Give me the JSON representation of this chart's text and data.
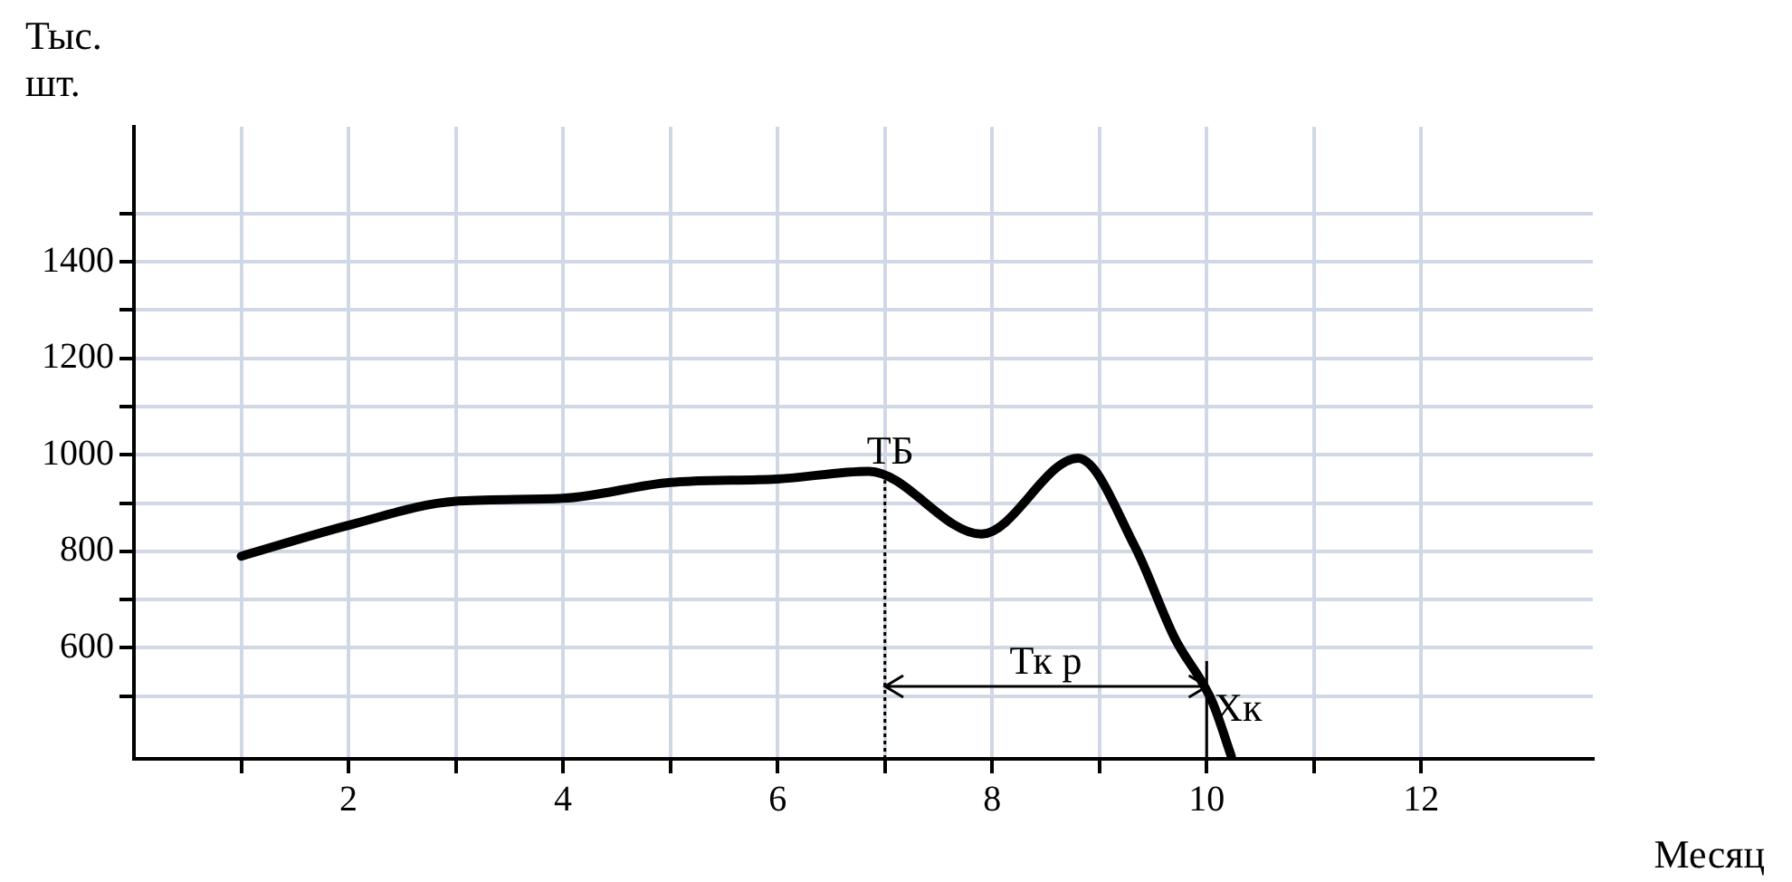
{
  "chart_data": {
    "type": "line",
    "xlabel": "Месяц",
    "ylabel": "Тыс. шт.",
    "x": [
      1,
      2,
      3,
      4,
      5,
      6,
      6.85,
      7.9,
      8.8,
      9.33,
      9.7,
      10.05,
      10.23
    ],
    "series": [
      {
        "color": "#000000",
        "values": [
          790,
          854,
          904,
          910,
          943,
          950,
          966,
          836,
          993,
          810,
          621,
          489,
          375
        ]
      }
    ],
    "xlim": [
      0,
      13.6
    ],
    "ylim": [
      370,
      1680
    ],
    "xticks": [
      {
        "value": 1,
        "label": null
      },
      2,
      {
        "value": 3,
        "label": null
      },
      4,
      {
        "value": 5,
        "label": null
      },
      6,
      {
        "value": 7,
        "label": null
      },
      8,
      {
        "value": 9,
        "label": null
      },
      10,
      {
        "value": 11,
        "label": null
      },
      12
    ],
    "yticks": [
      {
        "value": 500,
        "label": null
      },
      600,
      {
        "value": 700,
        "label": null
      },
      800,
      {
        "value": 900,
        "label": null
      },
      1000,
      {
        "value": 1100,
        "label": null
      },
      1200,
      {
        "value": 1300,
        "label": null
      },
      1400,
      {
        "value": 1500,
        "label": null
      }
    ],
    "ref_lines": [
      {
        "axis": "x",
        "value": 7,
        "label": "ТБ",
        "line_style": "dotted"
      },
      {
        "axis": "x",
        "value": 10,
        "label": "Хк",
        "line_style": "solid"
      }
    ],
    "annotations": [
      "Тк р"
    ],
    "grid": true,
    "marker": "none",
    "line_style": "solid",
    "legend": false
  }
}
